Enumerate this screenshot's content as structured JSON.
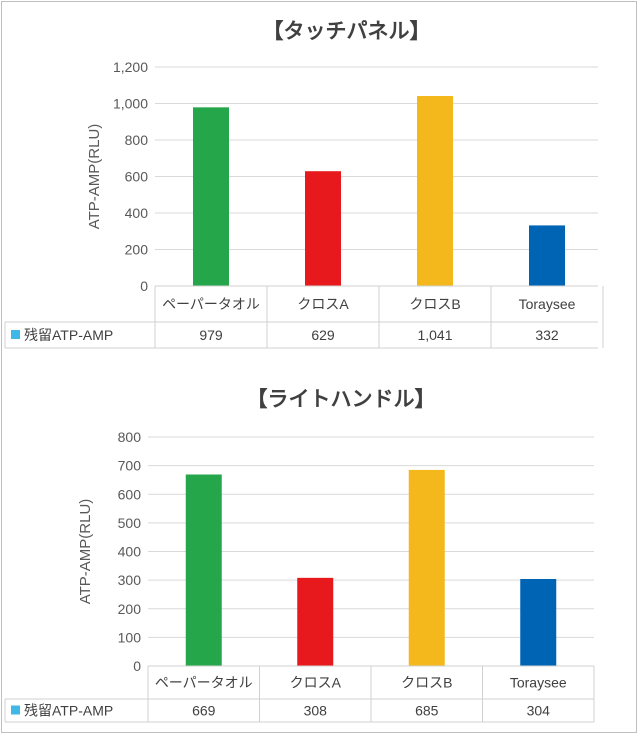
{
  "chart_data": [
    {
      "type": "bar",
      "title": "【タッチパネル】",
      "ylabel": "ATP-AMP(RLU)",
      "xlabel": "",
      "categories": [
        "ペーパータオル",
        "クロスA",
        "クロスB",
        "Toraysee"
      ],
      "series": [
        {
          "name": "残留ATP-AMP",
          "values": [
            979,
            629,
            1041,
            332
          ]
        }
      ],
      "value_labels": [
        "979",
        "629",
        "1,041",
        "332"
      ],
      "ylim": [
        0,
        1200
      ],
      "yticks": [
        "0",
        "200",
        "400",
        "600",
        "800",
        "1,000",
        "1,200"
      ],
      "grid": true,
      "legend": "data-table-left",
      "colors": [
        "#26a64b",
        "#e8191d",
        "#f5b81c",
        "#0064b5"
      ],
      "legend_color": "#3fb8e8"
    },
    {
      "type": "bar",
      "title": "【ライトハンドル】",
      "ylabel": "ATP-AMP(RLU)",
      "xlabel": "",
      "categories": [
        "ペーパータオル",
        "クロスA",
        "クロスB",
        "Toraysee"
      ],
      "series": [
        {
          "name": "残留ATP-AMP",
          "values": [
            669,
            308,
            685,
            304
          ]
        }
      ],
      "value_labels": [
        "669",
        "308",
        "685",
        "304"
      ],
      "ylim": [
        0,
        800
      ],
      "yticks": [
        "0",
        "100",
        "200",
        "300",
        "400",
        "500",
        "600",
        "700",
        "800"
      ],
      "grid": true,
      "legend": "data-table-left",
      "colors": [
        "#26a64b",
        "#e8191d",
        "#f5b81c",
        "#0064b5"
      ],
      "legend_color": "#3fb8e8"
    }
  ]
}
